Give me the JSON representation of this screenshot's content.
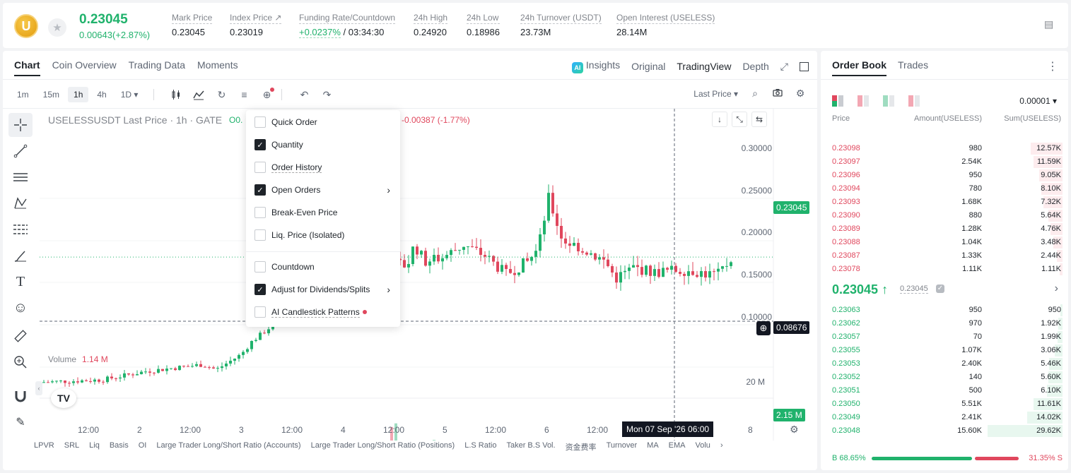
{
  "ticker": {
    "coin_letter": "U",
    "price": "0.23045",
    "change": "0.00643(+2.87%)",
    "stats": [
      {
        "label": "Mark Price",
        "value": "0.23045"
      },
      {
        "label": "Index Price ↗",
        "value": "0.23019"
      },
      {
        "label": "Funding Rate/Countdown",
        "value_green": "+0.0237%",
        "value": " / 03:34:30"
      },
      {
        "label": "24h High",
        "value": "0.24920"
      },
      {
        "label": "24h Low",
        "value": "0.18986"
      },
      {
        "label": "24h Turnover (USDT)",
        "value": "23.73M"
      },
      {
        "label": "Open Interest (USELESS)",
        "value": "28.14M"
      }
    ]
  },
  "chart_tabs": [
    "Chart",
    "Coin Overview",
    "Trading Data",
    "Moments"
  ],
  "view_tabs": {
    "ai_icon": "AI",
    "insights": "Insights",
    "original": "Original",
    "tradingview": "TradingView",
    "depth": "Depth"
  },
  "timeframes": [
    "1m",
    "15m",
    "1h",
    "4h",
    "1D ▾"
  ],
  "last_price_sel": "Last Price ▾",
  "symbol_line": "USELESSUSDT Last Price · 1h · GATE",
  "ohlc_fragment": "O0.",
  "change_line": "-0.00387 (-1.77%)",
  "volume": {
    "label": "Volume",
    "value": "1.14 M"
  },
  "y_axis": [
    "0.30000",
    "0.25000",
    "0.20000",
    "0.15000",
    "0.10000"
  ],
  "y_tags": {
    "last": "0.23045",
    "cross": "0.08676",
    "vol_last": "2.15 M",
    "vol_axis": "20 M"
  },
  "x_axis": [
    {
      "label": "12:00"
    },
    {
      "label": "2"
    },
    {
      "label": "12:00"
    },
    {
      "label": "3"
    },
    {
      "label": "12:00"
    },
    {
      "label": "4"
    },
    {
      "label": "12:00"
    },
    {
      "label": "5"
    },
    {
      "label": "12:00"
    },
    {
      "label": "6"
    },
    {
      "label": "12:00"
    },
    {
      "label": "8"
    }
  ],
  "crosshair_time": "Mon 07 Sep '26   06:00",
  "indicators": [
    "LPVR",
    "SRL",
    "Liq",
    "Basis",
    "OI",
    "Large Trader Long/Short Ratio (Accounts)",
    "Large Trader Long/Short Ratio (Positions)",
    "L.S Ratio",
    "Taker B.S Vol.",
    "资金费率",
    "Turnover",
    "MA",
    "EMA",
    "Volu",
    "›"
  ],
  "menu": {
    "items": [
      {
        "label": "Quick Order",
        "checked": false,
        "arrow": false
      },
      {
        "label": "Quantity",
        "checked": true,
        "arrow": false
      },
      {
        "label": "Order History",
        "checked": false,
        "arrow": false,
        "underline": true
      },
      {
        "label": "Open Orders",
        "checked": true,
        "arrow": true
      },
      {
        "label": "Break-Even Price",
        "checked": false,
        "arrow": false
      },
      {
        "label": "Liq. Price (Isolated)",
        "checked": false,
        "arrow": false
      },
      {
        "label": "Countdown",
        "checked": false,
        "arrow": false
      },
      {
        "label": "Adjust for Dividends/Splits",
        "checked": true,
        "arrow": true
      },
      {
        "label": "AI Candlestick Patterns",
        "checked": false,
        "arrow": false,
        "underline": true,
        "dot": true
      }
    ]
  },
  "orderbook": {
    "tabs": [
      "Order Book",
      "Trades"
    ],
    "tick": "0.00001 ▾",
    "headers": {
      "price": "Price",
      "amount": "Amount(USELESS)",
      "sum": "Sum(USELESS)"
    },
    "asks": [
      {
        "price": "0.23098",
        "amount": "980",
        "sum": "12.57K",
        "depth": 0.42
      },
      {
        "price": "0.23097",
        "amount": "2.54K",
        "sum": "11.59K",
        "depth": 0.39
      },
      {
        "price": "0.23096",
        "amount": "950",
        "sum": "9.05K",
        "depth": 0.31
      },
      {
        "price": "0.23094",
        "amount": "780",
        "sum": "8.10K",
        "depth": 0.28
      },
      {
        "price": "0.23093",
        "amount": "1.68K",
        "sum": "7.32K",
        "depth": 0.25
      },
      {
        "price": "0.23090",
        "amount": "880",
        "sum": "5.64K",
        "depth": 0.19
      },
      {
        "price": "0.23089",
        "amount": "1.28K",
        "sum": "4.76K",
        "depth": 0.16
      },
      {
        "price": "0.23088",
        "amount": "1.04K",
        "sum": "3.48K",
        "depth": 0.12
      },
      {
        "price": "0.23087",
        "amount": "1.33K",
        "sum": "2.44K",
        "depth": 0.08
      },
      {
        "price": "0.23078",
        "amount": "1.11K",
        "sum": "1.11K",
        "depth": 0.04
      }
    ],
    "mid": {
      "price": "0.23045 ↑",
      "mark": "0.23045"
    },
    "bids": [
      {
        "price": "0.23063",
        "amount": "950",
        "sum": "950",
        "depth": 0.03
      },
      {
        "price": "0.23062",
        "amount": "970",
        "sum": "1.92K",
        "depth": 0.06
      },
      {
        "price": "0.23057",
        "amount": "70",
        "sum": "1.99K",
        "depth": 0.07
      },
      {
        "price": "0.23055",
        "amount": "1.07K",
        "sum": "3.06K",
        "depth": 0.1
      },
      {
        "price": "0.23053",
        "amount": "2.40K",
        "sum": "5.46K",
        "depth": 0.18
      },
      {
        "price": "0.23052",
        "amount": "140",
        "sum": "5.60K",
        "depth": 0.19
      },
      {
        "price": "0.23051",
        "amount": "500",
        "sum": "6.10K",
        "depth": 0.21
      },
      {
        "price": "0.23050",
        "amount": "5.51K",
        "sum": "11.61K",
        "depth": 0.39
      },
      {
        "price": "0.23049",
        "amount": "2.41K",
        "sum": "14.02K",
        "depth": 0.47
      },
      {
        "price": "0.23048",
        "amount": "15.60K",
        "sum": "29.62K",
        "depth": 1.0
      }
    ],
    "ratio": {
      "buy": "B 68.65%",
      "sell": "31.35% S"
    }
  },
  "colors": {
    "green": "#20b26c",
    "red": "#e0475d",
    "green_vol": "#9fdcc0",
    "red_vol": "#f3a7b3"
  }
}
